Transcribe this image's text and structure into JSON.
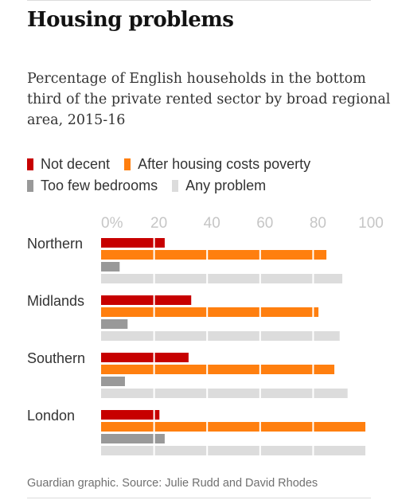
{
  "title": "Housing problems",
  "subtitle": "Percentage of English households in the bottom third of the private rented sector by broad regional area, 2015-16",
  "source": "Guardian graphic. Source: Julie Rudd and David Rhodes",
  "colors": {
    "not_decent": "#c70000",
    "after_housing_costs_poverty": "#ff7f0f",
    "too_few_bedrooms": "#999999",
    "any_problem": "#dcdcdc",
    "tick": "#c6c6c6",
    "gridline": "#ffffff"
  },
  "chart_data": {
    "type": "bar",
    "orientation": "horizontal",
    "title": "Housing problems",
    "subtitle": "Percentage of English households in the bottom third of the private rented sector by broad regional area, 2015-16",
    "categories": [
      "Northern",
      "Midlands",
      "Southern",
      "London"
    ],
    "series": [
      {
        "name": "Not decent",
        "color": "#c70000",
        "values": [
          24,
          34,
          33,
          22
        ]
      },
      {
        "name": "After housing costs poverty",
        "color": "#ff7f0f",
        "values": [
          85,
          82,
          88,
          100
        ]
      },
      {
        "name": "Too few bedrooms",
        "color": "#999999",
        "values": [
          7,
          10,
          9,
          24
        ]
      },
      {
        "name": "Any problem",
        "color": "#dcdcdc",
        "values": [
          91,
          90,
          93,
          100
        ]
      }
    ],
    "xlim": [
      0,
      100
    ],
    "xticks": [
      0,
      20,
      40,
      60,
      80,
      100
    ],
    "xtick_labels": [
      "0%",
      "20",
      "40",
      "60",
      "80",
      "100"
    ],
    "grid": true,
    "legend_position": "top"
  }
}
